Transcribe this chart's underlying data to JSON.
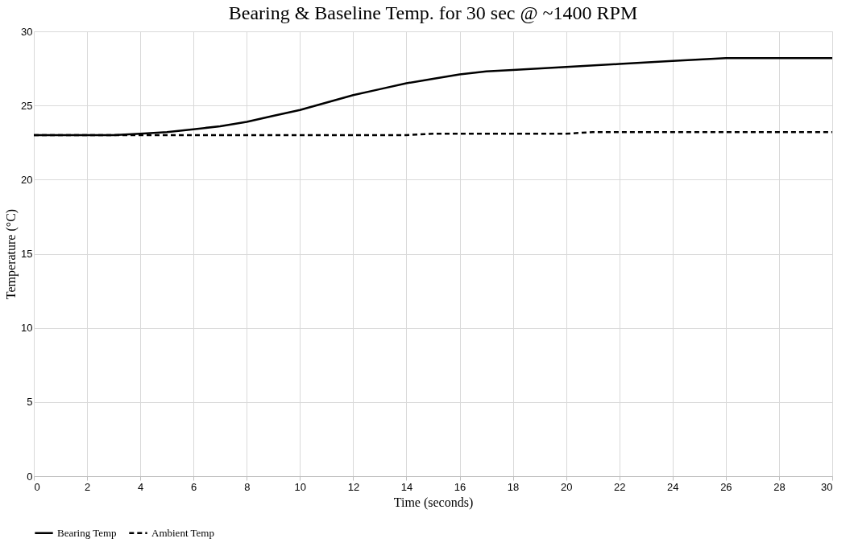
{
  "chart_data": {
    "type": "line",
    "title": "Bearing & Baseline Temp. for 30 sec @ ~1400 RPM",
    "xlabel": "Time (seconds)",
    "ylabel": "Temperature (°C)",
    "series": [
      {
        "name": "Bearing Temp",
        "color": "#000000",
        "line_style": "solid",
        "x": [
          0,
          2,
          3,
          4,
          5,
          6,
          7,
          8,
          9,
          10,
          11,
          12,
          13,
          14,
          15,
          16,
          17,
          18,
          20,
          22,
          24,
          26,
          28,
          30
        ],
        "values": [
          23.0,
          23.0,
          23.0,
          23.1,
          23.2,
          23.4,
          23.6,
          23.9,
          24.3,
          24.7,
          25.2,
          25.7,
          26.1,
          26.5,
          26.8,
          27.1,
          27.3,
          27.4,
          27.6,
          27.8,
          28.0,
          28.2,
          28.2,
          28.2
        ]
      },
      {
        "name": "Ambient Temp",
        "color": "#000000",
        "line_style": "dashed",
        "x": [
          0,
          14,
          15,
          20,
          21,
          30
        ],
        "values": [
          23.0,
          23.0,
          23.1,
          23.1,
          23.2,
          23.2
        ]
      }
    ],
    "xlim": [
      0,
      30
    ],
    "xticks": [
      0,
      2,
      4,
      6,
      8,
      10,
      12,
      14,
      16,
      18,
      20,
      22,
      24,
      26,
      28,
      30
    ],
    "ylim": [
      0,
      30
    ],
    "yticks": [
      0,
      5,
      10,
      15,
      20,
      25,
      30
    ],
    "grid": true,
    "legend": "bottom",
    "marker": "none"
  }
}
